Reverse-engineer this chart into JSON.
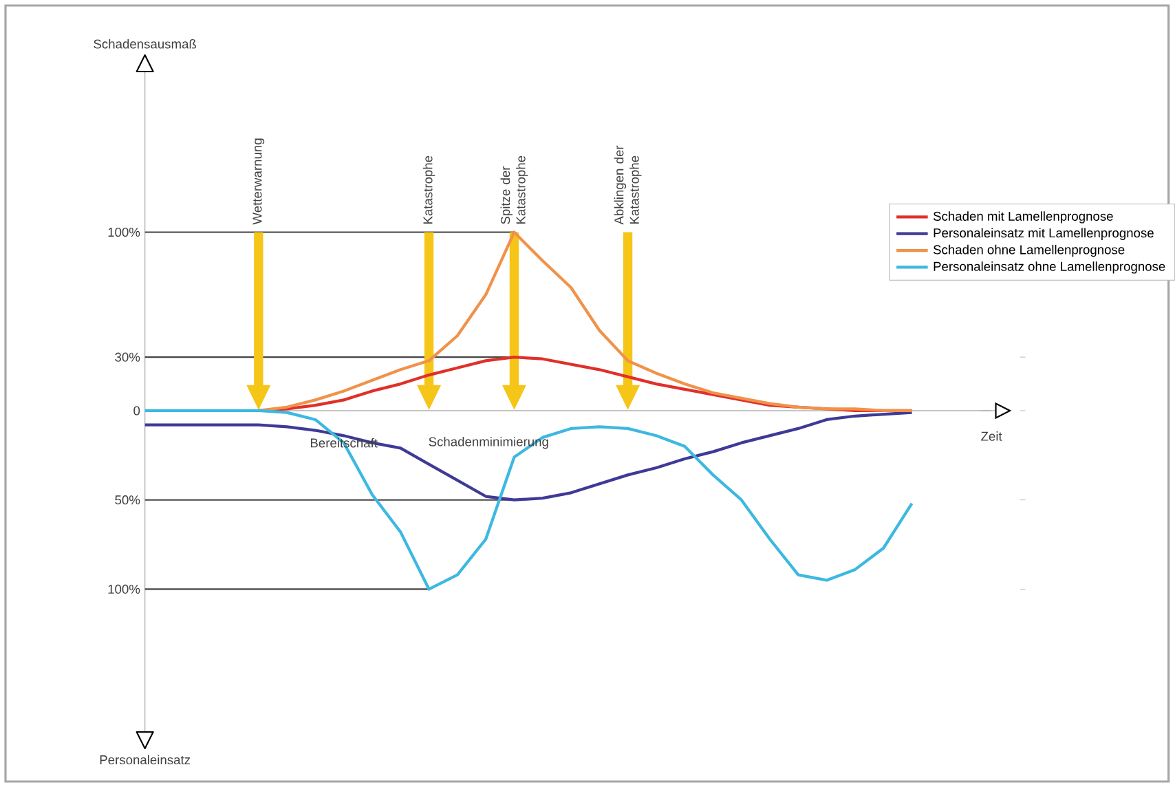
{
  "chart_data": {
    "type": "line",
    "xlabel": "Zeit",
    "ylabel": "Schadensausmaß",
    "categories": [
      null,
      null,
      null,
      null,
      "Wetterwarnung",
      null,
      null,
      null,
      null,
      null,
      "Katastrophe",
      null,
      null,
      "Spitze der Katastrophe",
      null,
      null,
      null,
      "Abklingen der Katastrophe",
      null,
      null,
      null,
      null,
      null,
      null,
      null,
      null,
      null,
      null
    ],
    "ylim": [
      -180,
      190
    ],
    "yticks": [
      {
        "value": 100,
        "label": "100%"
      },
      {
        "value": 30,
        "label": "30%"
      },
      {
        "value": 0,
        "label": "0"
      },
      {
        "value": -50,
        "label": "50%"
      },
      {
        "value": -100,
        "label": "100%"
      }
    ],
    "legend": "top right",
    "marker": "none",
    "series": [
      {
        "name": "Schaden mit Lamellenprognose",
        "color": "#e0302a",
        "values": [
          null,
          null,
          null,
          null,
          0,
          1,
          3,
          6,
          11,
          15,
          20,
          24,
          28,
          30,
          29,
          26,
          23,
          19,
          15,
          12,
          9,
          6,
          3,
          2,
          1,
          0,
          0,
          0
        ]
      },
      {
        "name": "Personaleinsatz mit Lamellenprognose",
        "color": "#3f3a96",
        "values": [
          -8,
          -8,
          -8,
          -8,
          -8,
          -9,
          -11,
          -14,
          -18,
          -21,
          -30,
          -39,
          -48,
          -50,
          -49,
          -46,
          -41,
          -36,
          -32,
          -27,
          -23,
          -18,
          -14,
          -10,
          -5,
          -3,
          -2,
          -1
        ]
      },
      {
        "name": "Schaden ohne Lamellenprognose",
        "color": "#f0924a",
        "values": [
          null,
          null,
          null,
          null,
          0,
          2,
          6,
          11,
          17,
          23,
          28,
          42,
          65,
          100,
          84,
          69,
          45,
          28,
          21,
          15,
          10,
          7,
          4,
          2,
          1,
          1,
          0,
          0
        ]
      },
      {
        "name": "Personaleinsatz ohne Lamellenprognose",
        "color": "#3db8e0",
        "values": [
          0,
          0,
          0,
          0,
          0,
          -1,
          -5,
          -18,
          -47,
          -68,
          -100,
          -92,
          -72,
          -26,
          -15,
          -10,
          -9,
          -10,
          -14,
          -20,
          -36,
          -50,
          -72,
          -92,
          -95,
          -89,
          -77,
          -52
        ]
      }
    ],
    "ref_lines": [
      {
        "axis": "y",
        "value": 100,
        "color": "#444444"
      },
      {
        "axis": "y",
        "value": 30,
        "color": "#444444"
      },
      {
        "axis": "y",
        "value": -50,
        "color": "#444444"
      },
      {
        "axis": "y",
        "value": -100,
        "color": "#444444"
      }
    ],
    "annotations": [
      "Personaleinsatz",
      "Bereitschaft",
      "Schadenminimierung"
    ]
  }
}
